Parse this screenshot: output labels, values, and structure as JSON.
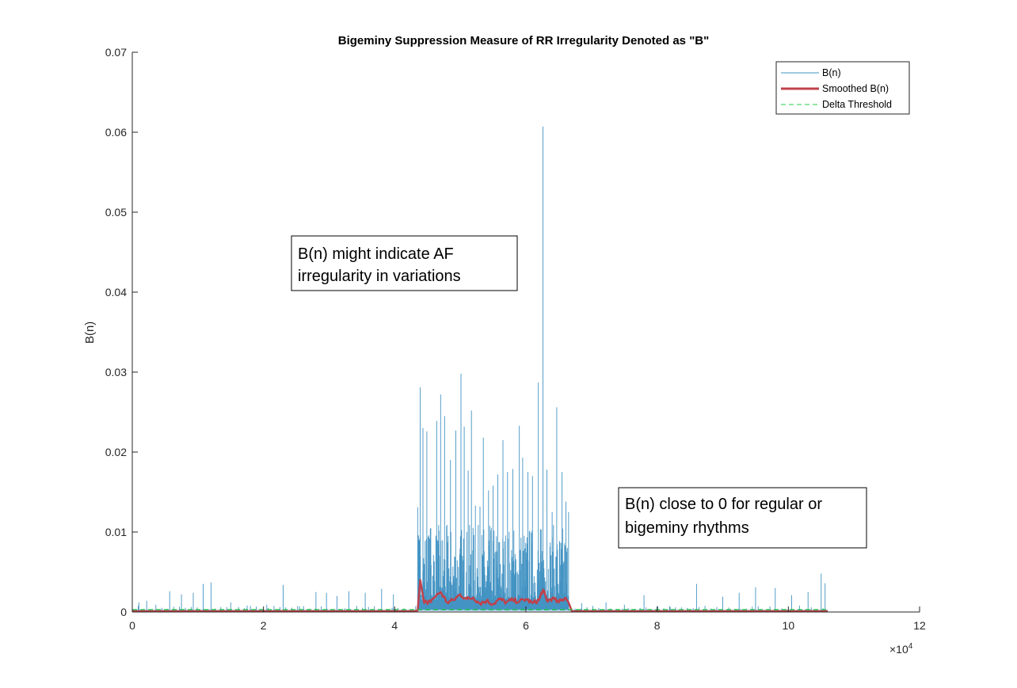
{
  "colors": {
    "raw": "#4393C3",
    "smoothed": "#C0414B",
    "threshold": "#22CC44",
    "axis": "#262626"
  },
  "chart_data": {
    "type": "line",
    "title": "Bigeminy Suppression Measure of RR Irregularity Denoted as \"B\"",
    "xlabel": "",
    "ylabel": "B(n)",
    "xlim": [
      0,
      120000
    ],
    "ylim": [
      0,
      0.07
    ],
    "x_ticks": [
      0,
      20000,
      40000,
      60000,
      80000,
      100000,
      120000
    ],
    "x_tick_labels": [
      "0",
      "2",
      "4",
      "6",
      "8",
      "10",
      "12"
    ],
    "x_exponent_label": "×10",
    "x_exponent_power": "4",
    "y_ticks": [
      0,
      0.01,
      0.02,
      0.03,
      0.04,
      0.05,
      0.06,
      0.07
    ],
    "y_tick_labels": [
      "0",
      "0.01",
      "0.02",
      "0.03",
      "0.04",
      "0.05",
      "0.06",
      "0.07"
    ],
    "grid": false,
    "legend_position": "top-right",
    "legend": [
      "B(n)",
      "Smoothed B(n)",
      "Delta Threshold"
    ],
    "series": [
      {
        "name": "B(n)",
        "style": "thin-line",
        "background": {
          "x_range": [
            0,
            106000
          ],
          "level": 0.0002,
          "spikes": [
            [
              1000,
              0.0012
            ],
            [
              2200,
              0.0014
            ],
            [
              3600,
              0.0009
            ],
            [
              5700,
              0.0026
            ],
            [
              7500,
              0.0022
            ],
            [
              9300,
              0.0024
            ],
            [
              10800,
              0.0035
            ],
            [
              12000,
              0.0037
            ],
            [
              15000,
              0.0012
            ],
            [
              17500,
              0.0008
            ],
            [
              20500,
              0.0009
            ],
            [
              23000,
              0.0034
            ],
            [
              25500,
              0.0007
            ],
            [
              28000,
              0.0025
            ],
            [
              29600,
              0.0024
            ],
            [
              31200,
              0.002
            ],
            [
              33000,
              0.0026
            ],
            [
              35500,
              0.0024
            ],
            [
              38000,
              0.0029
            ],
            [
              39800,
              0.0022
            ],
            [
              68500,
              0.0011
            ],
            [
              72200,
              0.0012
            ],
            [
              75000,
              0.0009
            ],
            [
              78000,
              0.0021
            ],
            [
              82000,
              0.0006
            ],
            [
              86000,
              0.0035
            ],
            [
              90000,
              0.0019
            ],
            [
              92500,
              0.0024
            ],
            [
              95000,
              0.0031
            ],
            [
              98000,
              0.003
            ],
            [
              100500,
              0.0021
            ],
            [
              103000,
              0.0025
            ],
            [
              105000,
              0.0048
            ],
            [
              105600,
              0.0036
            ]
          ]
        },
        "af_segment": {
          "x_range": [
            43500,
            66500
          ],
          "max_spikes": [
            [
              43900,
              0.0281
            ],
            [
              44300,
              0.023
            ],
            [
              44900,
              0.0226
            ],
            [
              45500,
              0.0105
            ],
            [
              46400,
              0.0239
            ],
            [
              47000,
              0.0272
            ],
            [
              47600,
              0.0245
            ],
            [
              48500,
              0.019
            ],
            [
              49300,
              0.0227
            ],
            [
              50100,
              0.0298
            ],
            [
              50600,
              0.0232
            ],
            [
              51200,
              0.0177
            ],
            [
              51700,
              0.0252
            ],
            [
              52300,
              0.0133
            ],
            [
              53000,
              0.0132
            ],
            [
              53500,
              0.0218
            ],
            [
              54300,
              0.0152
            ],
            [
              55000,
              0.0158
            ],
            [
              55700,
              0.0172
            ],
            [
              56500,
              0.0215
            ],
            [
              57200,
              0.0175
            ],
            [
              58000,
              0.0179
            ],
            [
              59000,
              0.0233
            ],
            [
              59500,
              0.0193
            ],
            [
              60300,
              0.0175
            ],
            [
              61000,
              0.017
            ],
            [
              61900,
              0.0287
            ],
            [
              62600,
              0.0607
            ],
            [
              63200,
              0.0178
            ],
            [
              64000,
              0.0125
            ],
            [
              64700,
              0.0256
            ],
            [
              65500,
              0.0175
            ],
            [
              66100,
              0.0138
            ]
          ]
        }
      },
      {
        "name": "Smoothed B(n)",
        "style": "thick-line",
        "x": [
          0,
          43000,
          43500,
          43900,
          44400,
          45000,
          46000,
          47000,
          48000,
          49000,
          50000,
          51000,
          52000,
          53000,
          54000,
          55000,
          56000,
          57000,
          58000,
          59000,
          60000,
          61000,
          62000,
          62600,
          63200,
          64000,
          65000,
          66000,
          66500,
          67000,
          106000
        ],
        "y": [
          0.0001,
          0.0001,
          0.0002,
          0.004,
          0.0015,
          0.001,
          0.0018,
          0.0025,
          0.0012,
          0.0015,
          0.0022,
          0.0016,
          0.0018,
          0.0011,
          0.0014,
          0.001,
          0.0016,
          0.0012,
          0.0015,
          0.0013,
          0.0016,
          0.0011,
          0.0015,
          0.0028,
          0.0014,
          0.0017,
          0.0012,
          0.0018,
          0.0012,
          0.0001,
          0.0001
        ]
      },
      {
        "name": "Delta Threshold",
        "style": "dashed",
        "x": [
          0,
          106000
        ],
        "y": [
          0.0003,
          0.0003
        ]
      }
    ],
    "annotations": [
      {
        "lines": [
          "B(n) might indicate AF",
          "irregularity in variations"
        ]
      },
      {
        "lines": [
          "B(n) close to 0 for regular or",
          "bigeminy rhythms"
        ]
      }
    ]
  }
}
